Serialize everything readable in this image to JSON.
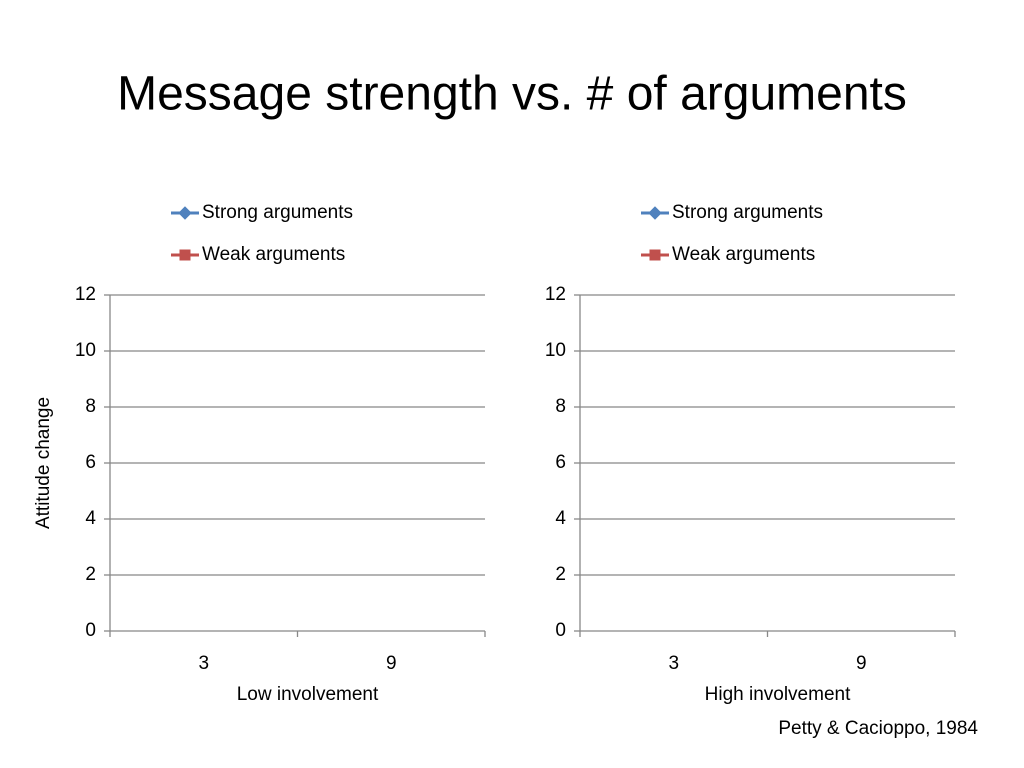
{
  "title": "Message strength vs. # of arguments",
  "citation": "Petty & Cacioppo, 1984",
  "chart_data": [
    {
      "type": "line",
      "xlabel": "Low involvement",
      "ylabel": "Attitude change",
      "categories": [
        "3",
        "9"
      ],
      "series": [
        {
          "name": "Strong arguments",
          "color": "#4f81bd",
          "marker": "diamond",
          "values": [
            null,
            null
          ]
        },
        {
          "name": "Weak arguments",
          "color": "#c0504d",
          "marker": "square",
          "values": [
            null,
            null
          ]
        }
      ],
      "ylim": [
        0,
        12
      ],
      "yticks": [
        0,
        2,
        4,
        6,
        8,
        10,
        12
      ],
      "grid": true
    },
    {
      "type": "line",
      "xlabel": "High involvement",
      "categories": [
        "3",
        "9"
      ],
      "series": [
        {
          "name": "Strong arguments",
          "color": "#4f81bd",
          "marker": "diamond",
          "values": [
            null,
            null
          ]
        },
        {
          "name": "Weak arguments",
          "color": "#c0504d",
          "marker": "square",
          "values": [
            null,
            null
          ]
        }
      ],
      "ylim": [
        0,
        12
      ],
      "yticks": [
        0,
        2,
        4,
        6,
        8,
        10,
        12
      ],
      "grid": true
    }
  ]
}
